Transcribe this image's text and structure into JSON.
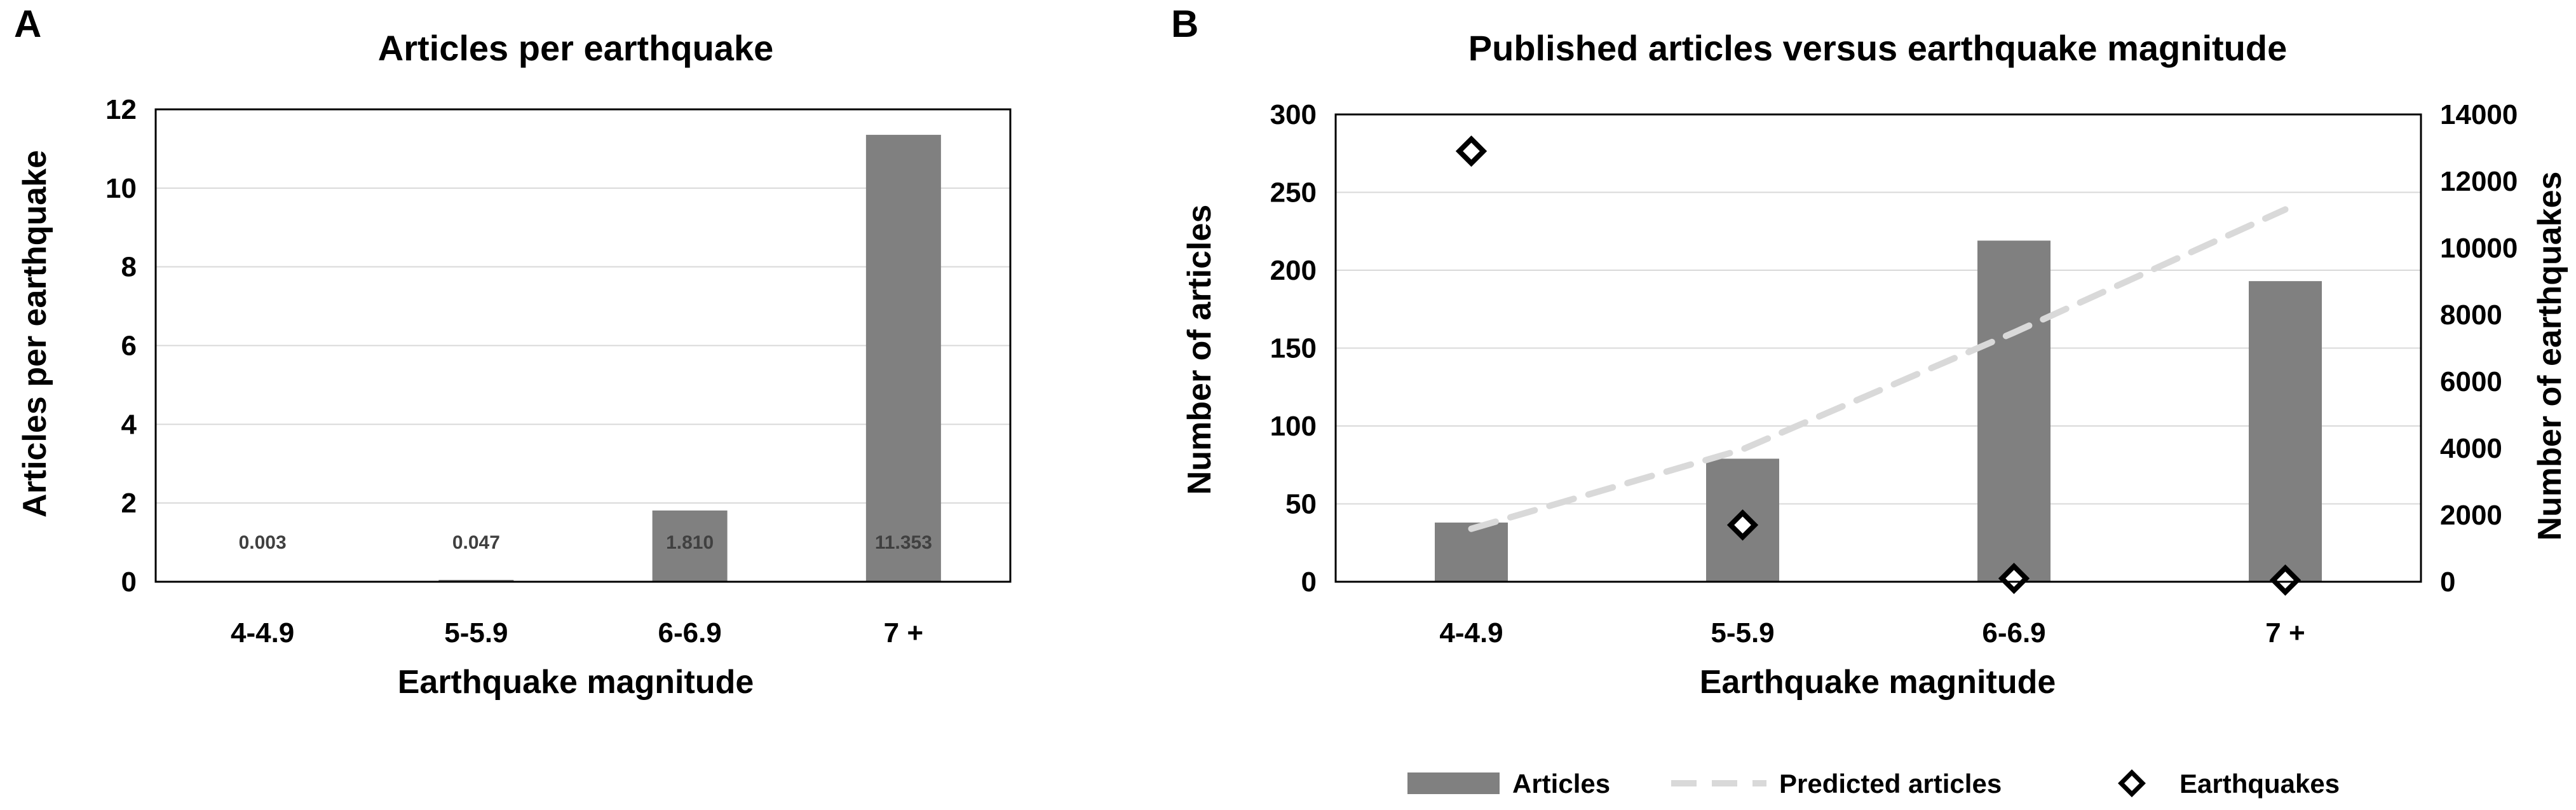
{
  "panels": {
    "a": "A",
    "b": "B"
  },
  "chart_data": [
    {
      "type": "bar",
      "title": "Articles per earthquake",
      "xlabel": "Earthquake magnitude",
      "ylabel": "Articles per earthquake",
      "categories": [
        "4-4.9",
        "5-5.9",
        "6-6.9",
        "7 +"
      ],
      "series": [
        {
          "values": [
            0.003,
            0.047,
            1.81,
            11.353
          ]
        }
      ],
      "data_labels": [
        "0.003",
        "0.047",
        "1.810",
        "11.353"
      ],
      "ylim": [
        0,
        12
      ],
      "yticks": [
        0,
        2,
        4,
        6,
        8,
        10,
        12
      ],
      "grid": true,
      "colors": {
        "bar": "#808080",
        "grid": "#d9d9d9",
        "label": "#404040"
      }
    },
    {
      "type": "bar",
      "title": "Published articles versus earthquake magnitude",
      "xlabel": "Earthquake magnitude",
      "ylabel": "Number of articles",
      "y2label": "Number of earthquakes",
      "categories": [
        "4-4.9",
        "5-5.9",
        "6-6.9",
        "7 +"
      ],
      "series": [
        {
          "name": "Articles",
          "type": "bar",
          "axis": "left",
          "values": [
            38,
            79,
            219,
            193
          ]
        },
        {
          "name": "Predicted articles",
          "type": "line",
          "style": "dashed",
          "axis": "left",
          "values": [
            34,
            85,
            160,
            239
          ]
        },
        {
          "name": "Earthquakes",
          "type": "scatter",
          "marker": "diamond",
          "axis": "right",
          "values": [
            12900,
            1700,
            100,
            50
          ]
        }
      ],
      "ylim": [
        0,
        300
      ],
      "yticks": [
        0,
        50,
        100,
        150,
        200,
        250,
        300
      ],
      "y2lim": [
        0,
        14000
      ],
      "y2ticks": [
        0,
        2000,
        4000,
        6000,
        8000,
        10000,
        12000,
        14000
      ],
      "grid": true,
      "legend": "bottom",
      "colors": {
        "bar": "#808080",
        "line": "#d9d9d9",
        "marker": "#000000",
        "grid": "#d9d9d9"
      }
    }
  ]
}
